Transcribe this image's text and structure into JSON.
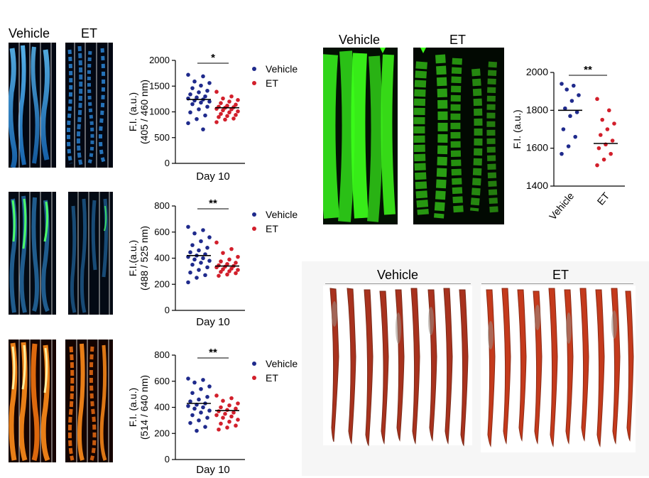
{
  "colors": {
    "vehicle": "#1f2a8c",
    "et": "#d21f2b",
    "blue_fluor": "#3aa0e8",
    "green_fluor": "#3cff1a",
    "orange_fluor": "#ff9a1a",
    "red_stain": "#b5301c",
    "mean_line": "#000000"
  },
  "panels": {
    "left_header": {
      "vehicle": "Vehicle",
      "et": "ET"
    },
    "green_header": {
      "vehicle": "Vehicle",
      "et": "ET"
    },
    "stain_header": {
      "vehicle": "Vehicle",
      "et": "ET"
    }
  },
  "legend": {
    "vehicle": "Vehicle",
    "et": "ET"
  },
  "chart_data": [
    {
      "type": "scatter",
      "id": "chart1",
      "ylabel_line1": "F.I. (a.u.)",
      "ylabel_line2": "(405 / 460 nm)",
      "xlabel": "Day 10",
      "ylim": [
        0,
        2000
      ],
      "yticks": [
        "0",
        "500",
        "1000",
        "1500",
        "2000"
      ],
      "ytick_values": [
        0,
        500,
        1000,
        1500,
        2000
      ],
      "significance": "*",
      "series": [
        {
          "name": "Vehicle",
          "mean": 1240,
          "values": [
            1720,
            1690,
            1590,
            1560,
            1510,
            1460,
            1410,
            1380,
            1340,
            1300,
            1280,
            1260,
            1240,
            1220,
            1200,
            1180,
            1150,
            1100,
            1050,
            990,
            930,
            860,
            780,
            660
          ]
        },
        {
          "name": "ET",
          "mean": 1080,
          "values": [
            1390,
            1300,
            1260,
            1230,
            1200,
            1170,
            1140,
            1120,
            1100,
            1090,
            1080,
            1060,
            1050,
            1030,
            1010,
            990,
            960,
            940,
            920,
            900,
            870,
            850,
            800
          ]
        }
      ]
    },
    {
      "type": "scatter",
      "id": "chart2",
      "ylabel_line1": "F.I.(a.u.)",
      "ylabel_line2": "(488 / 525 nm)",
      "xlabel": "Day 10",
      "ylim": [
        0,
        800
      ],
      "yticks": [
        "0",
        "200",
        "400",
        "600",
        "800"
      ],
      "ytick_values": [
        0,
        200,
        400,
        600,
        800
      ],
      "significance": "**",
      "series": [
        {
          "name": "Vehicle",
          "mean": 420,
          "values": [
            640,
            615,
            590,
            560,
            530,
            500,
            480,
            460,
            445,
            430,
            420,
            410,
            400,
            390,
            380,
            365,
            350,
            330,
            310,
            290,
            270,
            250,
            215
          ]
        },
        {
          "name": "ET",
          "mean": 340,
          "values": [
            520,
            470,
            440,
            410,
            390,
            375,
            365,
            355,
            345,
            340,
            335,
            330,
            320,
            315,
            310,
            300,
            295,
            285,
            275,
            265
          ]
        }
      ]
    },
    {
      "type": "scatter",
      "id": "chart3",
      "ylabel_line1": "F.I. (a.u.)",
      "ylabel_line2": "(514 / 640 nm)",
      "xlabel": "Day 10",
      "ylim": [
        0,
        800
      ],
      "yticks": [
        "0",
        "200",
        "400",
        "600",
        "800"
      ],
      "ytick_values": [
        0,
        200,
        400,
        600,
        800
      ],
      "significance": "**",
      "series": [
        {
          "name": "Vehicle",
          "mean": 430,
          "values": [
            620,
            610,
            590,
            560,
            540,
            510,
            480,
            460,
            445,
            430,
            420,
            410,
            400,
            390,
            375,
            360,
            340,
            320,
            300,
            280,
            250,
            220
          ]
        },
        {
          "name": "ET",
          "mean": 375,
          "values": [
            490,
            470,
            450,
            430,
            415,
            400,
            390,
            380,
            370,
            360,
            350,
            340,
            330,
            320,
            305,
            290,
            275,
            260,
            245,
            230
          ]
        }
      ]
    },
    {
      "type": "scatter",
      "id": "chart4",
      "ylabel_line1": "F.I. (a.u.)",
      "ylabel_line2": "",
      "xlabel": "",
      "ylim": [
        1400,
        2000
      ],
      "yticks": [
        "1400",
        "1600",
        "1800",
        "2000"
      ],
      "ytick_values": [
        1400,
        1600,
        1800,
        2000
      ],
      "xticks": [
        "Vehicle",
        "ET"
      ],
      "significance": "**",
      "series": [
        {
          "name": "Vehicle",
          "mean": 1800,
          "values": [
            1940,
            1930,
            1910,
            1880,
            1850,
            1810,
            1790,
            1770,
            1700,
            1660,
            1610,
            1570
          ]
        },
        {
          "name": "ET",
          "mean": 1625,
          "values": [
            1860,
            1800,
            1750,
            1730,
            1700,
            1670,
            1640,
            1620,
            1600,
            1570,
            1540,
            1510
          ]
        }
      ]
    }
  ]
}
